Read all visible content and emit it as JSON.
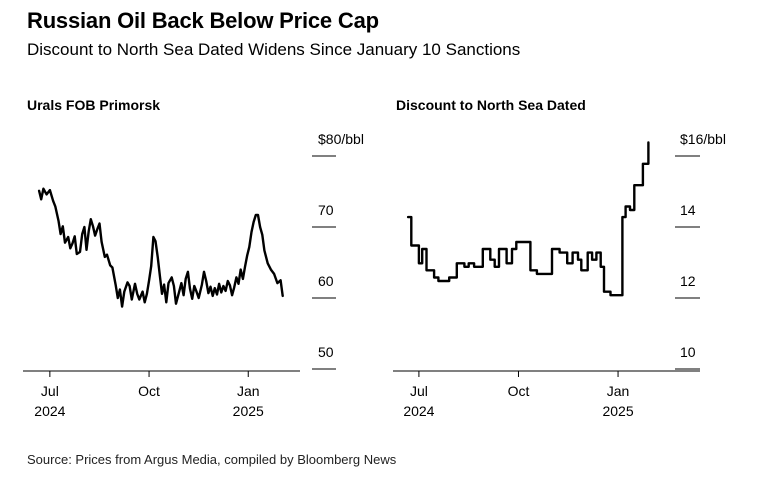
{
  "title": "Russian Oil Back Below Price Cap",
  "subtitle": "Discount to North Sea Dated Widens Since January 10 Sanctions",
  "source": "Source: Prices from Argus Media, compiled by Bloomberg News",
  "chart_data": [
    {
      "type": "line",
      "title": "Urals FOB Primorsk",
      "y_tick_labels": [
        "$80/bbl",
        "70",
        "60",
        "50"
      ],
      "y_ticks": [
        80,
        70,
        60,
        50
      ],
      "ylim": [
        50,
        80
      ],
      "x_tick_labels": [
        {
          "date": "2024-07-01",
          "month": "Jul",
          "year": "2024"
        },
        {
          "date": "2024-10-01",
          "month": "Oct",
          "year": ""
        },
        {
          "date": "2025-01-01",
          "month": "Jan",
          "year": "2025"
        }
      ],
      "xlim": [
        "2024-06-20",
        "2025-02-18"
      ],
      "series": [
        {
          "color": "#000000",
          "points": [
            [
              "2024-06-21",
              72.7
            ],
            [
              "2024-06-23",
              71.5
            ],
            [
              "2024-06-25",
              73.0
            ],
            [
              "2024-06-28",
              72.2
            ],
            [
              "2024-07-01",
              72.8
            ],
            [
              "2024-07-04",
              71.3
            ],
            [
              "2024-07-06",
              70.5
            ],
            [
              "2024-07-09",
              68.5
            ],
            [
              "2024-07-11",
              66.6
            ],
            [
              "2024-07-13",
              67.7
            ],
            [
              "2024-07-15",
              65.4
            ],
            [
              "2024-07-18",
              66.2
            ],
            [
              "2024-07-20",
              64.6
            ],
            [
              "2024-07-22",
              65.3
            ],
            [
              "2024-07-24",
              66.3
            ],
            [
              "2024-07-26",
              63.8
            ],
            [
              "2024-07-29",
              64.1
            ],
            [
              "2024-07-31",
              66.6
            ],
            [
              "2024-08-02",
              67.6
            ],
            [
              "2024-08-04",
              64.4
            ],
            [
              "2024-08-06",
              67.0
            ],
            [
              "2024-08-08",
              68.7
            ],
            [
              "2024-08-10",
              67.7
            ],
            [
              "2024-08-12",
              66.4
            ],
            [
              "2024-08-14",
              67.3
            ],
            [
              "2024-08-16",
              68.1
            ],
            [
              "2024-08-18",
              65.5
            ],
            [
              "2024-08-21",
              63.4
            ],
            [
              "2024-08-23",
              63.7
            ],
            [
              "2024-08-26",
              62.2
            ],
            [
              "2024-08-28",
              61.9
            ],
            [
              "2024-08-31",
              59.5
            ],
            [
              "2024-09-02",
              57.6
            ],
            [
              "2024-09-04",
              58.8
            ],
            [
              "2024-09-06",
              56.4
            ],
            [
              "2024-09-08",
              58.5
            ],
            [
              "2024-09-11",
              59.8
            ],
            [
              "2024-09-13",
              59.3
            ],
            [
              "2024-09-15",
              57.4
            ],
            [
              "2024-09-18",
              59.6
            ],
            [
              "2024-09-20",
              58.2
            ],
            [
              "2024-09-22",
              57.4
            ],
            [
              "2024-09-25",
              58.5
            ],
            [
              "2024-09-27",
              57.0
            ],
            [
              "2024-09-29",
              58.2
            ],
            [
              "2024-10-01",
              60.1
            ],
            [
              "2024-10-03",
              62.1
            ],
            [
              "2024-10-05",
              66.2
            ],
            [
              "2024-10-07",
              65.6
            ],
            [
              "2024-10-09",
              63.4
            ],
            [
              "2024-10-11",
              60.8
            ],
            [
              "2024-10-13",
              58.2
            ],
            [
              "2024-10-15",
              59.5
            ],
            [
              "2024-10-17",
              57.0
            ],
            [
              "2024-10-19",
              59.7
            ],
            [
              "2024-10-22",
              60.5
            ],
            [
              "2024-10-24",
              59.3
            ],
            [
              "2024-10-26",
              56.8
            ],
            [
              "2024-10-29",
              58.5
            ],
            [
              "2024-10-31",
              59.7
            ],
            [
              "2024-11-02",
              58.0
            ],
            [
              "2024-11-04",
              60.3
            ],
            [
              "2024-11-06",
              61.3
            ],
            [
              "2024-11-08",
              58.9
            ],
            [
              "2024-11-10",
              57.5
            ],
            [
              "2024-11-12",
              59.3
            ],
            [
              "2024-11-14",
              58.5
            ],
            [
              "2024-11-16",
              57.6
            ],
            [
              "2024-11-19",
              59.5
            ],
            [
              "2024-11-21",
              61.3
            ],
            [
              "2024-11-23",
              60.0
            ],
            [
              "2024-11-25",
              58.3
            ],
            [
              "2024-11-27",
              59.2
            ],
            [
              "2024-11-29",
              57.9
            ],
            [
              "2024-12-01",
              59.0
            ],
            [
              "2024-12-03",
              58.1
            ],
            [
              "2024-12-05",
              59.6
            ],
            [
              "2024-12-07",
              58.4
            ],
            [
              "2024-12-09",
              59.3
            ],
            [
              "2024-12-11",
              58.6
            ],
            [
              "2024-12-13",
              60.0
            ],
            [
              "2024-12-15",
              59.4
            ],
            [
              "2024-12-17",
              58.0
            ],
            [
              "2024-12-19",
              59.1
            ],
            [
              "2024-12-21",
              60.5
            ],
            [
              "2024-12-23",
              59.6
            ],
            [
              "2024-12-25",
              61.6
            ],
            [
              "2024-12-27",
              60.3
            ],
            [
              "2024-12-29",
              62.0
            ],
            [
              "2024-12-31",
              63.6
            ],
            [
              "2025-01-02",
              64.8
            ],
            [
              "2025-01-04",
              66.9
            ],
            [
              "2025-01-06",
              68.3
            ],
            [
              "2025-01-08",
              69.3
            ],
            [
              "2025-01-10",
              69.3
            ],
            [
              "2025-01-12",
              67.6
            ],
            [
              "2025-01-14",
              66.5
            ],
            [
              "2025-01-16",
              64.3
            ],
            [
              "2025-01-19",
              62.5
            ],
            [
              "2025-01-22",
              61.6
            ],
            [
              "2025-01-25",
              61.0
            ],
            [
              "2025-01-28",
              59.7
            ],
            [
              "2025-01-31",
              60.1
            ],
            [
              "2025-02-02",
              57.9
            ]
          ]
        }
      ]
    },
    {
      "type": "line",
      "title": "Discount to North Sea Dated",
      "y_tick_labels": [
        "$16/bbl",
        "14",
        "12",
        "10"
      ],
      "y_ticks": [
        16,
        14,
        12,
        10
      ],
      "ylim": [
        10,
        16
      ],
      "x_tick_labels": [
        {
          "date": "2024-07-01",
          "month": "Jul",
          "year": "2024"
        },
        {
          "date": "2024-10-01",
          "month": "Oct",
          "year": ""
        },
        {
          "date": "2025-01-01",
          "month": "Jan",
          "year": "2025"
        }
      ],
      "xlim": [
        "2024-06-20",
        "2025-02-18"
      ],
      "series": [
        {
          "color": "#000000",
          "points": [
            [
              "2024-06-21",
              13.8
            ],
            [
              "2024-06-24",
              13.8
            ],
            [
              "2024-06-24",
              13.0
            ],
            [
              "2024-07-01",
              13.0
            ],
            [
              "2024-07-01",
              12.5
            ],
            [
              "2024-07-04",
              12.5
            ],
            [
              "2024-07-04",
              12.9
            ],
            [
              "2024-07-08",
              12.9
            ],
            [
              "2024-07-08",
              12.3
            ],
            [
              "2024-07-15",
              12.3
            ],
            [
              "2024-07-15",
              12.1
            ],
            [
              "2024-07-19",
              12.1
            ],
            [
              "2024-07-19",
              12.0
            ],
            [
              "2024-07-29",
              12.0
            ],
            [
              "2024-07-29",
              12.1
            ],
            [
              "2024-08-05",
              12.1
            ],
            [
              "2024-08-05",
              12.5
            ],
            [
              "2024-08-12",
              12.5
            ],
            [
              "2024-08-12",
              12.4
            ],
            [
              "2024-08-16",
              12.4
            ],
            [
              "2024-08-16",
              12.5
            ],
            [
              "2024-08-21",
              12.5
            ],
            [
              "2024-08-21",
              12.4
            ],
            [
              "2024-08-29",
              12.4
            ],
            [
              "2024-08-29",
              12.9
            ],
            [
              "2024-09-05",
              12.9
            ],
            [
              "2024-09-05",
              12.6
            ],
            [
              "2024-09-09",
              12.6
            ],
            [
              "2024-09-09",
              12.4
            ],
            [
              "2024-09-13",
              12.4
            ],
            [
              "2024-09-13",
              12.9
            ],
            [
              "2024-09-20",
              12.9
            ],
            [
              "2024-09-20",
              12.5
            ],
            [
              "2024-09-25",
              12.5
            ],
            [
              "2024-09-25",
              12.9
            ],
            [
              "2024-09-29",
              12.9
            ],
            [
              "2024-09-29",
              13.1
            ],
            [
              "2024-10-12",
              13.1
            ],
            [
              "2024-10-12",
              12.3
            ],
            [
              "2024-10-18",
              12.3
            ],
            [
              "2024-10-18",
              12.2
            ],
            [
              "2024-11-01",
              12.2
            ],
            [
              "2024-11-01",
              12.9
            ],
            [
              "2024-11-08",
              12.9
            ],
            [
              "2024-11-08",
              12.8
            ],
            [
              "2024-11-15",
              12.8
            ],
            [
              "2024-11-15",
              12.5
            ],
            [
              "2024-11-20",
              12.5
            ],
            [
              "2024-11-20",
              12.8
            ],
            [
              "2024-11-25",
              12.8
            ],
            [
              "2024-11-25",
              12.6
            ],
            [
              "2024-11-28",
              12.6
            ],
            [
              "2024-11-28",
              12.3
            ],
            [
              "2024-12-04",
              12.3
            ],
            [
              "2024-12-04",
              12.8
            ],
            [
              "2024-12-08",
              12.8
            ],
            [
              "2024-12-08",
              12.6
            ],
            [
              "2024-12-12",
              12.6
            ],
            [
              "2024-12-12",
              12.8
            ],
            [
              "2024-12-16",
              12.8
            ],
            [
              "2024-12-16",
              12.4
            ],
            [
              "2024-12-19",
              12.4
            ],
            [
              "2024-12-19",
              11.7
            ],
            [
              "2024-12-25",
              11.7
            ],
            [
              "2024-12-25",
              11.6
            ],
            [
              "2025-01-05",
              11.6
            ],
            [
              "2025-01-05",
              13.8
            ],
            [
              "2025-01-08",
              13.8
            ],
            [
              "2025-01-08",
              14.1
            ],
            [
              "2025-01-12",
              14.1
            ],
            [
              "2025-01-12",
              14.0
            ],
            [
              "2025-01-16",
              14.0
            ],
            [
              "2025-01-16",
              14.7
            ],
            [
              "2025-01-24",
              14.7
            ],
            [
              "2025-01-24",
              15.3
            ],
            [
              "2025-01-29",
              15.3
            ],
            [
              "2025-01-29",
              15.9
            ]
          ]
        }
      ]
    }
  ]
}
